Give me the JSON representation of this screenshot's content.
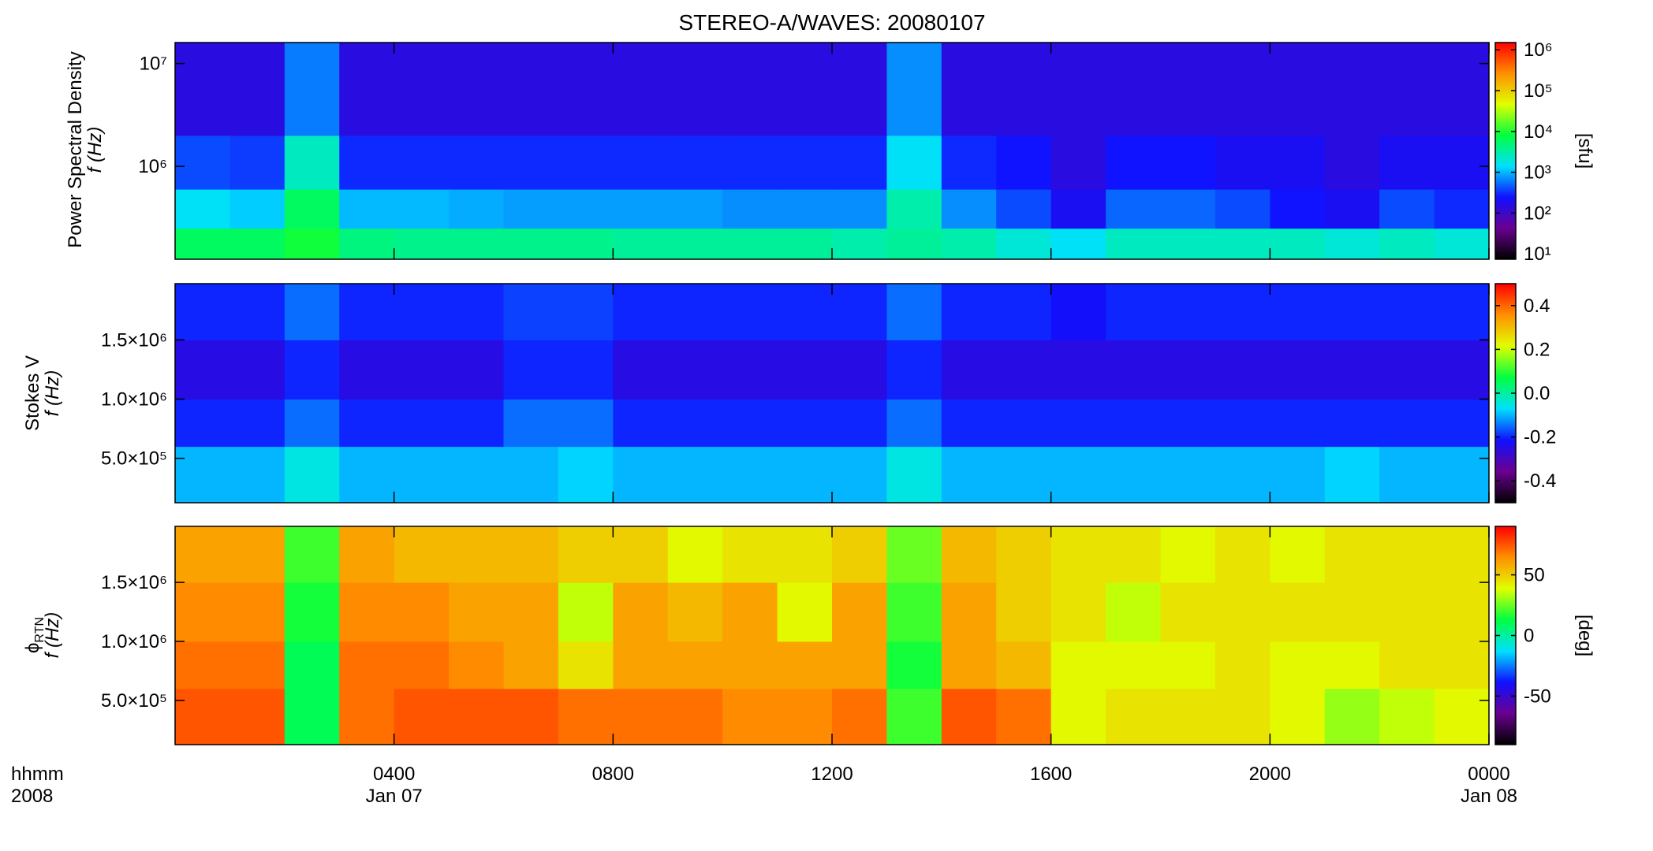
{
  "chart_data": {
    "type": "heatmap",
    "title": "STEREO-A/WAVES: 20080107",
    "x_axis_labels": [
      "hhmm",
      "2008"
    ],
    "xlim": [
      0,
      24
    ],
    "xticks": [
      {
        "value": 4,
        "label": "0400"
      },
      {
        "value": 8,
        "label": "0800"
      },
      {
        "value": 12,
        "label": "1200"
      },
      {
        "value": 16,
        "label": "1600"
      },
      {
        "value": 20,
        "label": "2000"
      },
      {
        "value": 24,
        "label": "0000"
      }
    ],
    "xtick_dates": [
      {
        "value": 4,
        "label": "Jan 07"
      },
      {
        "value": 24,
        "label": "Jan 08"
      }
    ],
    "time_edges": [
      0,
      1,
      2,
      3,
      4,
      5,
      6,
      7,
      8,
      9,
      10,
      11,
      12,
      13,
      14,
      15,
      16,
      17,
      18,
      19,
      20,
      21,
      22,
      23,
      24
    ],
    "colormap": [
      "#000000",
      "#6a0090",
      "#1010ff",
      "#00e0ff",
      "#00ff40",
      "#e0ff00",
      "#ff9000",
      "#ff0000"
    ],
    "panels": [
      {
        "y_label_lines": [
          "Power Spectral Density",
          "f (Hz)"
        ],
        "log": true,
        "ylim": [
          125000,
          16000000
        ],
        "yticks": [
          {
            "value": 1000000,
            "label": "10⁶"
          },
          {
            "value": 10000000,
            "label": "10⁷"
          }
        ],
        "freq_edges": [
          125000,
          250000,
          600000,
          2000000,
          16000000
        ],
        "z": [
          [
            6000,
            6000,
            9000,
            4500,
            4000,
            4000,
            4000,
            4000,
            3500,
            3500,
            3500,
            3500,
            3000,
            3500,
            3000,
            2000,
            1500,
            2500,
            2500,
            2500,
            2500,
            2000,
            2500,
            2000
          ],
          [
            1500,
            1200,
            6000,
            1000,
            1000,
            900,
            800,
            800,
            800,
            800,
            700,
            700,
            700,
            3000,
            700,
            400,
            200,
            500,
            500,
            400,
            250,
            200,
            400,
            300
          ],
          [
            400,
            350,
            2500,
            300,
            300,
            300,
            300,
            300,
            300,
            300,
            300,
            300,
            300,
            1500,
            300,
            250,
            150,
            250,
            250,
            200,
            200,
            150,
            200,
            200
          ],
          [
            150,
            150,
            600,
            150,
            150,
            150,
            150,
            150,
            150,
            150,
            150,
            150,
            150,
            700,
            150,
            150,
            150,
            150,
            150,
            150,
            150,
            150,
            150,
            150
          ]
        ],
        "clim": [
          7.4,
          1500000
        ],
        "clog": true,
        "cticks": [
          {
            "value": 10,
            "label": "10¹"
          },
          {
            "value": 100,
            "label": "10²"
          },
          {
            "value": 1000,
            "label": "10³"
          },
          {
            "value": 10000,
            "label": "10⁴"
          },
          {
            "value": 100000,
            "label": "10⁵"
          },
          {
            "value": 1000000,
            "label": "10⁶"
          }
        ],
        "colorbar_label": "[sfu]"
      },
      {
        "y_label_lines": [
          "Stokes V",
          "f (Hz)"
        ],
        "log": false,
        "ylim": [
          125000,
          1975000
        ],
        "yticks": [
          {
            "value": 500000,
            "label": "5.0×10⁵"
          },
          {
            "value": 1000000,
            "label": "1.0×10⁶"
          },
          {
            "value": 1500000,
            "label": "1.5×10⁶"
          }
        ],
        "freq_edges": [
          125000,
          600000,
          1000000,
          1500000,
          1975000
        ],
        "z": [
          [
            -0.1,
            -0.1,
            -0.05,
            -0.1,
            -0.1,
            -0.1,
            -0.1,
            -0.08,
            -0.1,
            -0.1,
            -0.1,
            -0.1,
            -0.1,
            -0.05,
            -0.1,
            -0.1,
            -0.1,
            -0.1,
            -0.1,
            -0.1,
            -0.1,
            -0.08,
            -0.1,
            -0.1
          ],
          [
            -0.2,
            -0.2,
            -0.15,
            -0.2,
            -0.2,
            -0.2,
            -0.15,
            -0.15,
            -0.2,
            -0.2,
            -0.2,
            -0.2,
            -0.2,
            -0.15,
            -0.2,
            -0.2,
            -0.2,
            -0.2,
            -0.2,
            -0.2,
            -0.2,
            -0.2,
            -0.2,
            -0.2
          ],
          [
            -0.25,
            -0.25,
            -0.2,
            -0.25,
            -0.25,
            -0.25,
            -0.2,
            -0.2,
            -0.25,
            -0.25,
            -0.25,
            -0.25,
            -0.25,
            -0.2,
            -0.25,
            -0.25,
            -0.25,
            -0.25,
            -0.25,
            -0.25,
            -0.25,
            -0.25,
            -0.25,
            -0.25
          ],
          [
            -0.2,
            -0.2,
            -0.15,
            -0.2,
            -0.2,
            -0.2,
            -0.18,
            -0.18,
            -0.2,
            -0.2,
            -0.2,
            -0.2,
            -0.2,
            -0.15,
            -0.2,
            -0.2,
            -0.22,
            -0.2,
            -0.2,
            -0.2,
            -0.2,
            -0.2,
            -0.2,
            -0.2
          ]
        ],
        "clim": [
          -0.5,
          0.5
        ],
        "clog": false,
        "cticks": [
          -0.4,
          -0.2,
          {
            "value": 0,
            "label": "0.0"
          },
          0.2,
          0.4
        ]
      },
      {
        "y_label_symbol": "ϕ",
        "y_label_subscript": "RTN",
        "y_label_unit": "f (Hz)",
        "log": false,
        "ylim": [
          125000,
          1975000
        ],
        "yticks": [
          {
            "value": 500000,
            "label": "5.0×10⁵"
          },
          {
            "value": 1000000,
            "label": "1.0×10⁶"
          },
          {
            "value": 1500000,
            "label": "1.5×10⁶"
          }
        ],
        "freq_edges": [
          125000,
          600000,
          1000000,
          1500000,
          1975000
        ],
        "z": [
          [
            75,
            75,
            10,
            70,
            75,
            75,
            75,
            70,
            70,
            70,
            65,
            65,
            70,
            20,
            75,
            70,
            40,
            45,
            45,
            45,
            40,
            30,
            35,
            40
          ],
          [
            70,
            70,
            10,
            70,
            70,
            65,
            60,
            45,
            60,
            60,
            60,
            60,
            60,
            15,
            60,
            55,
            40,
            40,
            40,
            45,
            40,
            40,
            45,
            45
          ],
          [
            65,
            65,
            15,
            65,
            65,
            60,
            60,
            35,
            60,
            55,
            60,
            40,
            60,
            20,
            60,
            50,
            45,
            35,
            45,
            45,
            45,
            45,
            45,
            45
          ],
          [
            60,
            60,
            20,
            60,
            55,
            55,
            55,
            50,
            50,
            40,
            45,
            45,
            50,
            25,
            55,
            50,
            45,
            45,
            40,
            45,
            40,
            45,
            45,
            45
          ]
        ],
        "clim": [
          -90,
          90
        ],
        "clog": false,
        "cticks": [
          -50,
          0,
          50
        ],
        "colorbar_label": "[deg]"
      }
    ]
  }
}
